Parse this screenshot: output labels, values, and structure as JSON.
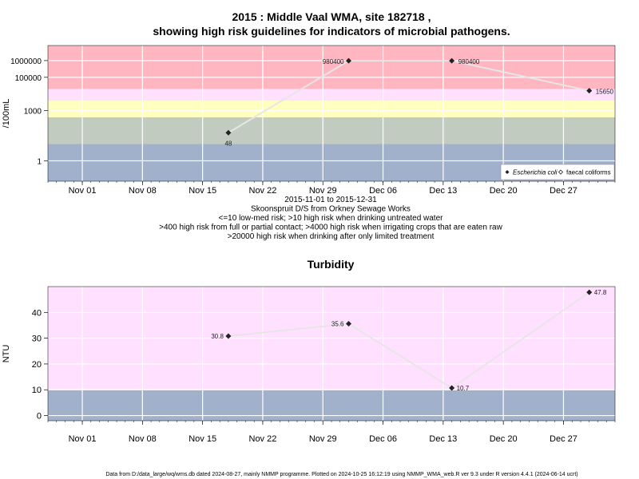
{
  "page": {
    "title_line1": "2015 : Middle Vaal WMA, site 182718 ,",
    "title_line2": "showing high risk guidelines for indicators of microbial pathogens.",
    "footer": "Data from D:/data_large/wq/wms.db dated 2024-08-27, mainly NMMP programme. Plotted on 2024-10-25 16:12:19 using NMMP_WMA_web.R ver 9.3 under R version 4.4.1 (2024-06-14 ucrt)"
  },
  "colors": {
    "red_band": "#ffb6c1",
    "pink_band": "#ffe0ff",
    "yellow_band": "#ffffc0",
    "green_band": "#c2cbc0",
    "blue_band": "#a1b1cb",
    "line": "#e6e6e6",
    "point": "#222222"
  },
  "chart_data": [
    {
      "type": "line",
      "title": "",
      "ylabel": "/100mL",
      "y_scale": "log10",
      "ylim": [
        0.06,
        8000000
      ],
      "x_range": [
        "2015-10-28",
        "2016-01-02"
      ],
      "x_ticks": [
        {
          "date": "2015-11-01",
          "label": "Nov 01"
        },
        {
          "date": "2015-11-08",
          "label": "Nov 08"
        },
        {
          "date": "2015-11-15",
          "label": "Nov 15"
        },
        {
          "date": "2015-11-22",
          "label": "Nov 22"
        },
        {
          "date": "2015-11-29",
          "label": "Nov 29"
        },
        {
          "date": "2015-12-06",
          "label": "Dec 06"
        },
        {
          "date": "2015-12-13",
          "label": "Dec 13"
        },
        {
          "date": "2015-12-20",
          "label": "Dec 20"
        },
        {
          "date": "2015-12-27",
          "label": "Dec 27"
        }
      ],
      "y_ticks": [
        {
          "value": 1,
          "label": "1"
        },
        {
          "value": 1000,
          "label": "1000"
        },
        {
          "value": 100000,
          "label": "100000"
        },
        {
          "value": 1000000,
          "label": "1000000"
        }
      ],
      "bands": [
        {
          "from": 0.06,
          "to": 10,
          "color": "#a1b1cb"
        },
        {
          "from": 10,
          "to": 400,
          "color": "#c2cbc0"
        },
        {
          "from": 400,
          "to": 4000,
          "color": "#ffffc0"
        },
        {
          "from": 4000,
          "to": 20000,
          "color": "#ffe0ff"
        },
        {
          "from": 20000,
          "to": 8000000,
          "color": "#ffb6c1"
        }
      ],
      "series": [
        {
          "name": "Escherichia coli",
          "marker": "filled-diamond",
          "points": [
            {
              "x": "2015-11-18",
              "y": 48,
              "label": "48"
            },
            {
              "x": "2015-12-02",
              "y": 980400,
              "label": "980400"
            },
            {
              "x": "2015-12-14",
              "y": 980400,
              "label": "980400"
            },
            {
              "x": "2015-12-30",
              "y": 15650,
              "label": "15650"
            }
          ]
        },
        {
          "name": "faecal coliforms",
          "marker": "open-diamond",
          "points": []
        }
      ],
      "legend": "bottom-right",
      "xlabel_lines": [
        "2015-11-01 to 2015-12-31",
        "Skoonspruit D/S from Orkney Sewage Works",
        "<=10 low-med risk; >10 high risk when drinking untreated water",
        ">400 high risk from full or partial contact; >4000 high risk when irrigating crops that are eaten raw",
        ">20000 high risk when drinking after only limited treatment"
      ],
      "grid": true
    },
    {
      "type": "line",
      "title": "Turbidity",
      "ylabel": "NTU",
      "y_scale": "linear",
      "ylim": [
        -2,
        50
      ],
      "x_range": [
        "2015-10-28",
        "2016-01-02"
      ],
      "x_ticks": [
        {
          "date": "2015-11-01",
          "label": "Nov 01"
        },
        {
          "date": "2015-11-08",
          "label": "Nov 08"
        },
        {
          "date": "2015-11-15",
          "label": "Nov 15"
        },
        {
          "date": "2015-11-22",
          "label": "Nov 22"
        },
        {
          "date": "2015-11-29",
          "label": "Nov 29"
        },
        {
          "date": "2015-12-06",
          "label": "Dec 06"
        },
        {
          "date": "2015-12-13",
          "label": "Dec 13"
        },
        {
          "date": "2015-12-20",
          "label": "Dec 20"
        },
        {
          "date": "2015-12-27",
          "label": "Dec 27"
        }
      ],
      "y_ticks": [
        {
          "value": 0,
          "label": "0"
        },
        {
          "value": 10,
          "label": "10"
        },
        {
          "value": 20,
          "label": "20"
        },
        {
          "value": 30,
          "label": "30"
        },
        {
          "value": 40,
          "label": "40"
        }
      ],
      "bands": [
        {
          "from": -2,
          "to": 10,
          "color": "#a1b1cb"
        },
        {
          "from": 10,
          "to": 50,
          "color": "#ffe0ff"
        }
      ],
      "series": [
        {
          "name": "",
          "marker": "filled-diamond",
          "points": [
            {
              "x": "2015-11-18",
              "y": 30.8,
              "label": "30.8",
              "label_side": "left"
            },
            {
              "x": "2015-12-02",
              "y": 35.6,
              "label": "35.6",
              "label_side": "left"
            },
            {
              "x": "2015-12-14",
              "y": 10.7,
              "label": "10.7",
              "label_side": "right"
            },
            {
              "x": "2015-12-30",
              "y": 47.8,
              "label": "47.8",
              "label_side": "right"
            }
          ]
        }
      ],
      "grid": true
    }
  ]
}
